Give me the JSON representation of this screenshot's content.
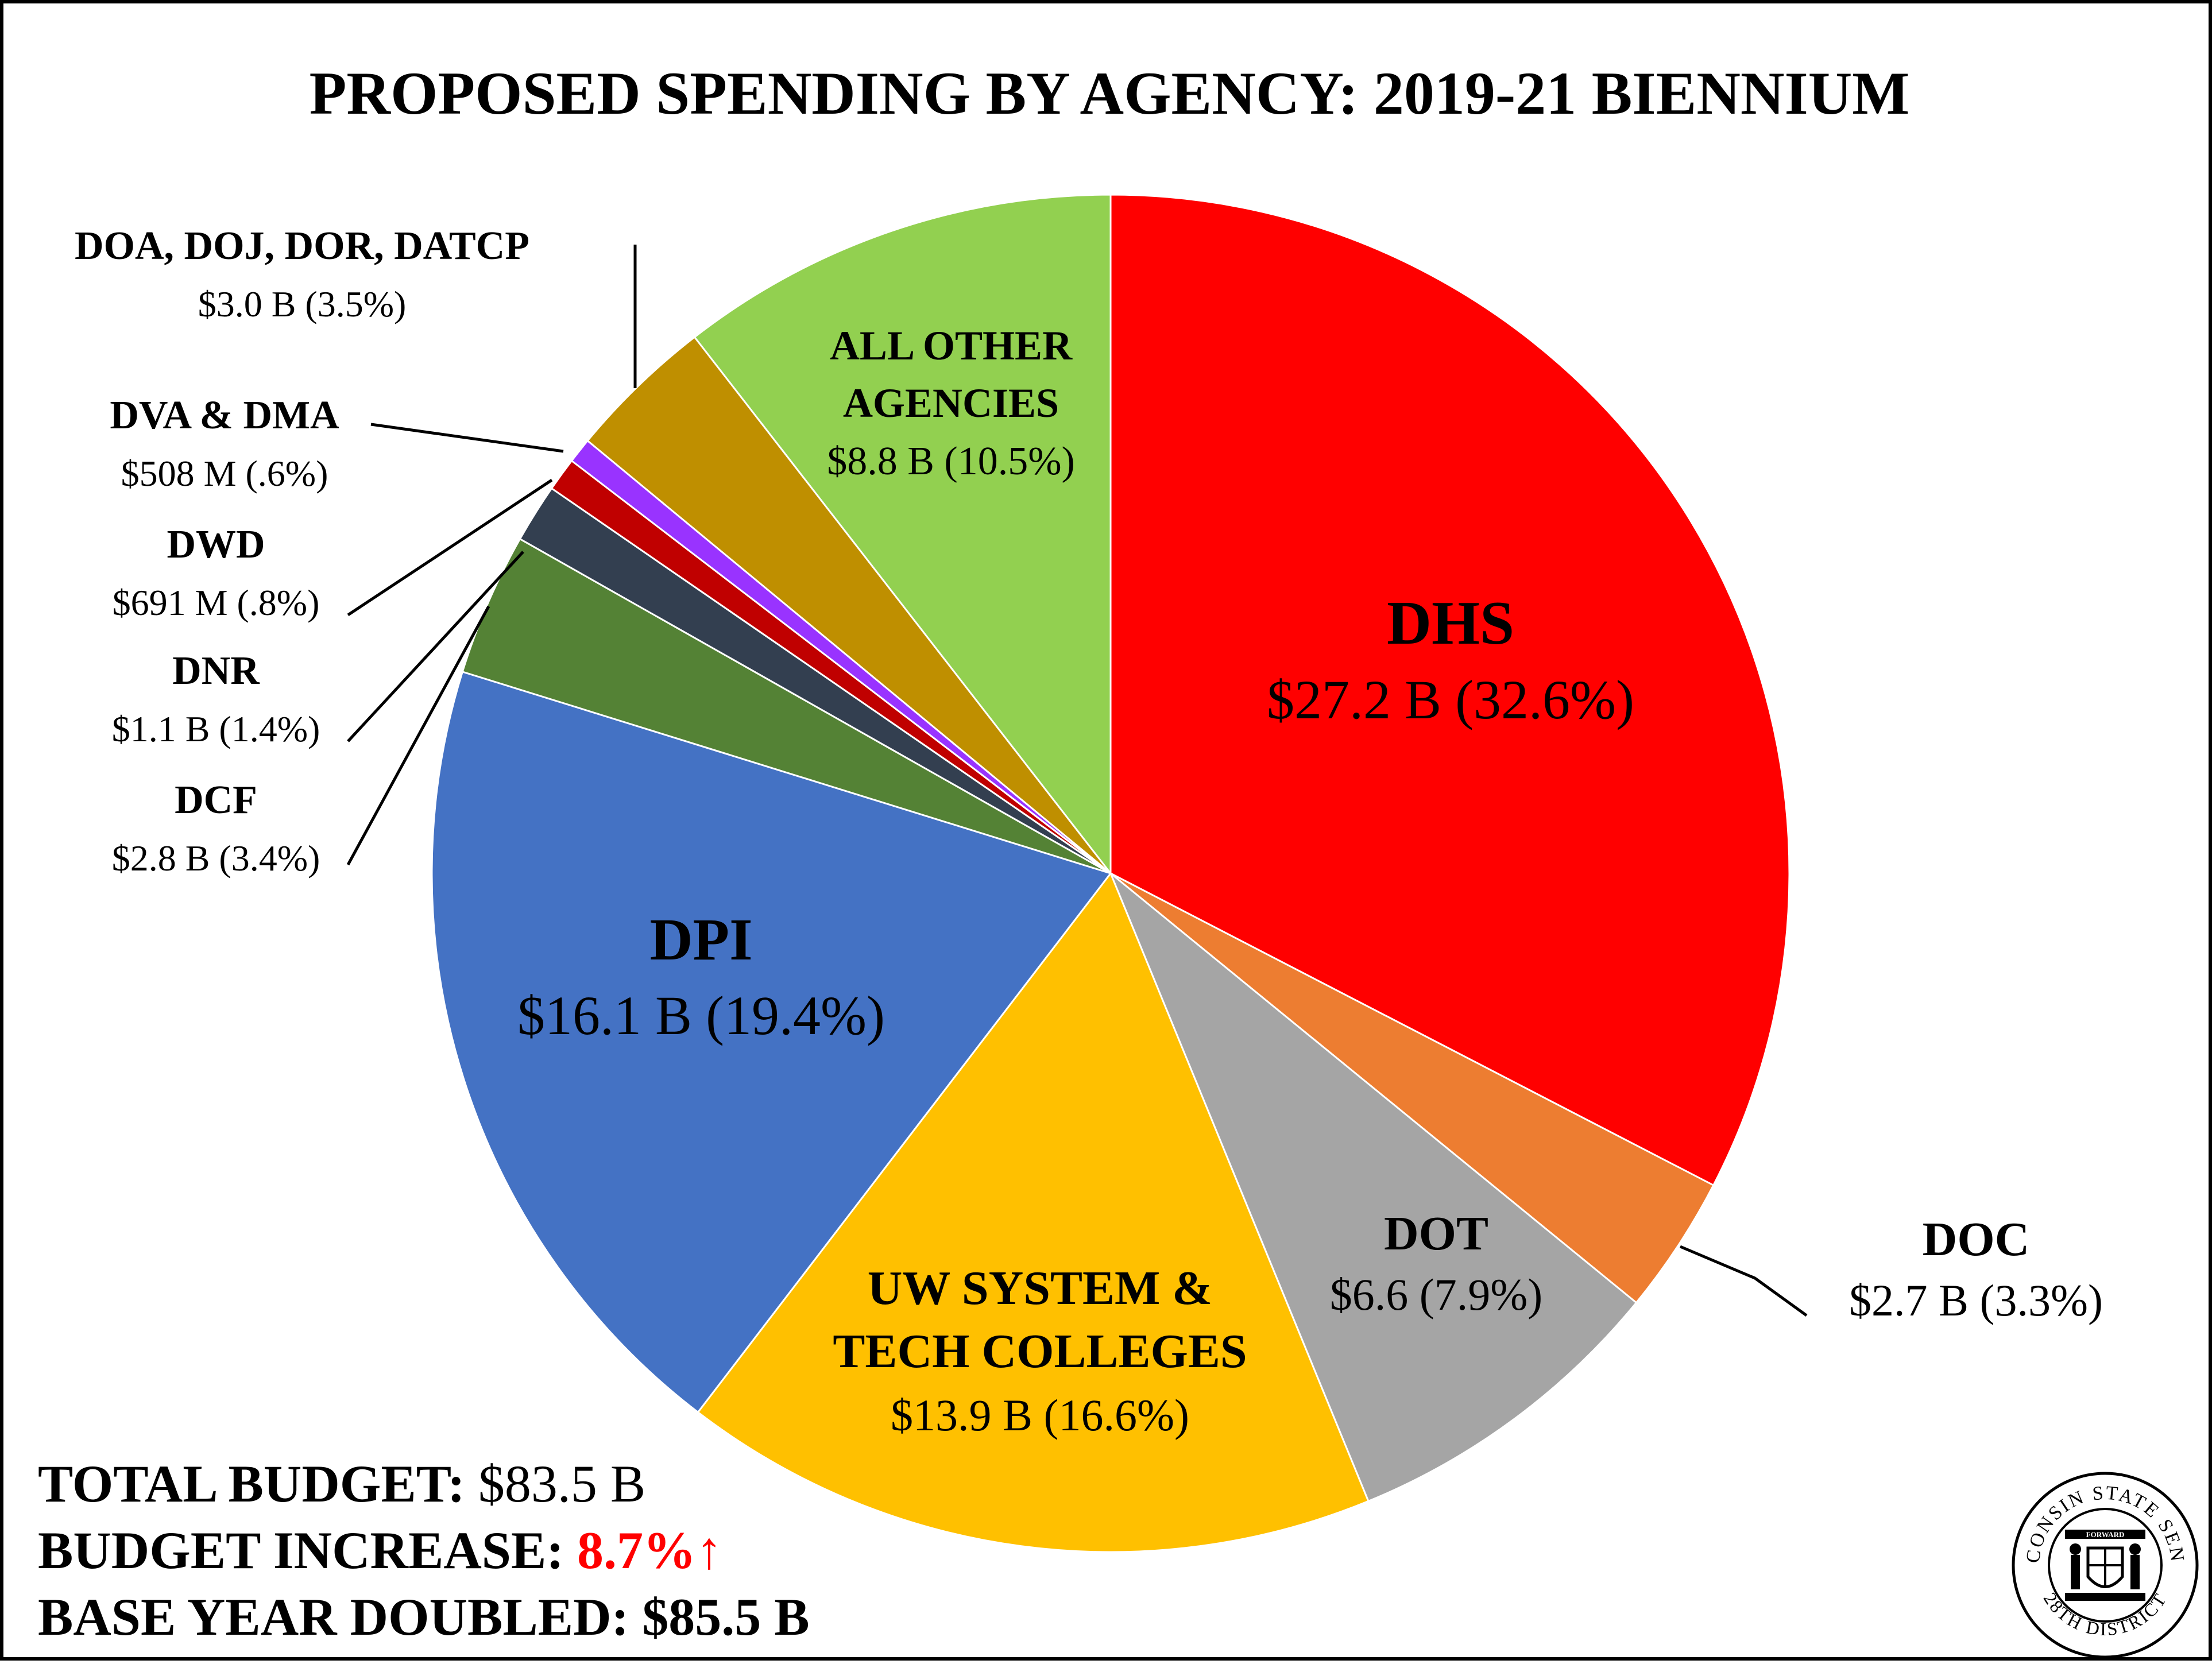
{
  "title": "PROPOSED SPENDING BY AGENCY: 2019-21 BIENNIUM",
  "chart_data": {
    "type": "pie",
    "title": "PROPOSED SPENDING BY AGENCY: 2019-21 BIENNIUM",
    "start_angle_deg": 0,
    "direction": "clockwise",
    "slices": [
      {
        "name": "DHS",
        "value": 27.2,
        "value_label": "$27.2 B (32.6%)",
        "percent": 32.6,
        "color": "#ff0000"
      },
      {
        "name": "DOC",
        "value": 2.7,
        "value_label": "$2.7 B (3.3%)",
        "percent": 3.3,
        "color": "#ed7d31"
      },
      {
        "name": "DOT",
        "value": 6.6,
        "value_label": "$6.6 (7.9%)",
        "percent": 7.9,
        "color": "#a5a5a5"
      },
      {
        "name": "UW SYSTEM & TECH COLLEGES",
        "name_lines": [
          "UW SYSTEM &",
          "TECH COLLEGES"
        ],
        "value": 13.9,
        "value_label": "$13.9 B (16.6%)",
        "percent": 16.6,
        "color": "#ffc000"
      },
      {
        "name": "DPI",
        "value": 16.1,
        "value_label": "$16.1 B (19.4%)",
        "percent": 19.4,
        "color": "#4472c4"
      },
      {
        "name": "DCF",
        "value": 2.8,
        "value_label": "$2.8 B (3.4%)",
        "percent": 3.4,
        "color": "#548235"
      },
      {
        "name": "DNR",
        "value": 1.1,
        "value_label": "$1.1 B (1.4%)",
        "percent": 1.4,
        "color": "#333f50"
      },
      {
        "name": "DWD",
        "value": 0.691,
        "value_label": "$691 M (.8%)",
        "percent": 0.8,
        "color": "#c00000"
      },
      {
        "name": "DVA & DMA",
        "value": 0.508,
        "value_label": "$508 M (.6%)",
        "percent": 0.6,
        "color": "#9933ff"
      },
      {
        "name": "DOA, DOJ, DOR, DATCP",
        "value": 3.0,
        "value_label": "$3.0 B (3.5%)",
        "percent": 3.5,
        "color": "#bf8f00"
      },
      {
        "name": "ALL OTHER AGENCIES",
        "name_lines": [
          "ALL OTHER",
          "AGENCIES"
        ],
        "value": 8.8,
        "value_label": "$8.8 B (10.5%)",
        "percent": 10.5,
        "color": "#92d050"
      }
    ]
  },
  "footer": {
    "total_label": "TOTAL BUDGET:",
    "total_value": "$83.5 B",
    "increase_label": "BUDGET INCREASE:",
    "increase_value": "8.7%↑",
    "base_label": "BASE YEAR DOUBLED:",
    "base_value": "$85.5 B"
  },
  "seal": {
    "ring_text_top": "WISCONSIN STATE SENATE",
    "ring_text_bottom": "28TH DISTRICT",
    "banner": "FORWARD"
  }
}
